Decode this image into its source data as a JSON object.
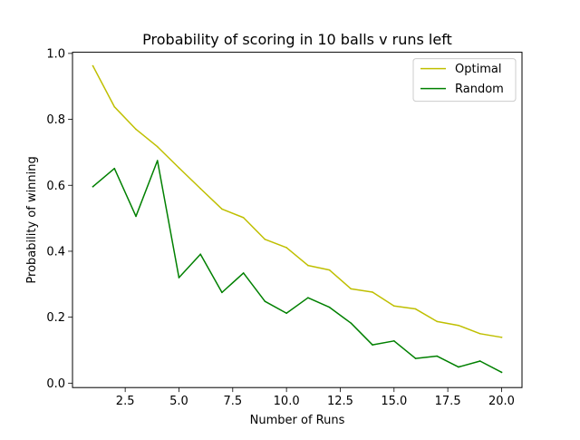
{
  "chart_data": {
    "type": "line",
    "title": "Probability of scoring in 10 balls v runs left",
    "xlabel": "Number of Runs",
    "ylabel": "Probability of winning",
    "xlim": [
      0.05,
      20.95
    ],
    "ylim": [
      -0.0134,
      1.0035
    ],
    "xticks": [
      2.5,
      5.0,
      7.5,
      10.0,
      12.5,
      15.0,
      17.5,
      20.0
    ],
    "xtick_labels": [
      "2.5",
      "5.0",
      "7.5",
      "10.0",
      "12.5",
      "15.0",
      "17.5",
      "20.0"
    ],
    "yticks": [
      0.0,
      0.2,
      0.4,
      0.6,
      0.8,
      1.0
    ],
    "ytick_labels": [
      "0.0",
      "0.2",
      "0.4",
      "0.6",
      "0.8",
      "1.0"
    ],
    "grid": false,
    "legend_position": "top-right",
    "x": [
      1,
      2,
      3,
      4,
      5,
      6,
      7,
      8,
      9,
      10,
      11,
      12,
      13,
      14,
      15,
      16,
      17,
      18,
      19,
      20
    ],
    "series": [
      {
        "name": "Optimal",
        "color": "#bfbf00",
        "values": [
          0.962,
          0.838,
          0.77,
          0.717,
          0.653,
          0.59,
          0.528,
          0.502,
          0.436,
          0.411,
          0.357,
          0.343,
          0.286,
          0.276,
          0.234,
          0.225,
          0.187,
          0.175,
          0.15,
          0.139
        ]
      },
      {
        "name": "Random",
        "color": "#008000",
        "values": [
          0.596,
          0.651,
          0.506,
          0.675,
          0.32,
          0.391,
          0.275,
          0.334,
          0.248,
          0.212,
          0.259,
          0.23,
          0.182,
          0.116,
          0.128,
          0.075,
          0.082,
          0.049,
          0.067,
          0.033
        ]
      }
    ]
  }
}
